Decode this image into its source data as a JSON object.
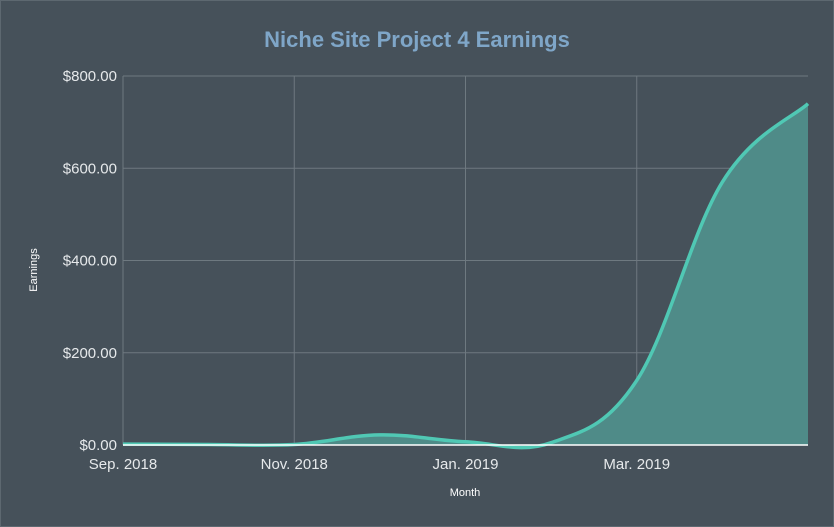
{
  "chart_data": {
    "type": "area",
    "title": "Niche Site Project 4 Earnings",
    "xlabel": "Month",
    "ylabel": "Earnings",
    "ylim": [
      0,
      800
    ],
    "yticks": [
      0,
      200,
      400,
      600,
      800
    ],
    "ytick_labels": [
      "$0.00",
      "$200.00",
      "$400.00",
      "$600.00",
      "$800.00"
    ],
    "xticks": [
      "2018-09",
      "2018-11",
      "2019-01",
      "2019-03"
    ],
    "xtick_labels": [
      "Sep. 2018",
      "Nov. 2018",
      "Jan. 2019",
      "Mar. 2019"
    ],
    "x": [
      "2018-09",
      "2018-10",
      "2018-11",
      "2018-12",
      "2019-01",
      "2019-02",
      "2019-03",
      "2019-04",
      "2019-05"
    ],
    "values": [
      2,
      1,
      1,
      22,
      7,
      5,
      140,
      570,
      740
    ],
    "grid": true,
    "colors": {
      "background": "#46515a",
      "title": "#7fa6c8",
      "line": "#50c8b4",
      "fill": "#4f8b88",
      "grid": "#6e7980",
      "text": "#e6e9eb"
    }
  }
}
